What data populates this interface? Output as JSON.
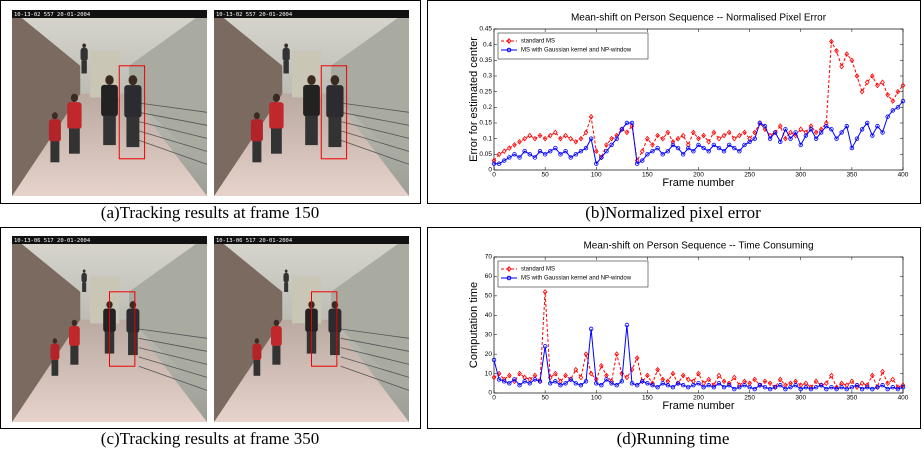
{
  "figure": {
    "captions": [
      "(a)Tracking results at frame 150",
      "(b)Normalized pixel error",
      "(c)Tracking results at frame 350",
      "(d)Running time"
    ],
    "photo_stamps": [
      "10-13-02 557 20-01-2004",
      "10-13-02 557 20-01-2004",
      "10-13-06 517 20-01-2004",
      "10-13-06 517 20-01-2004"
    ]
  },
  "chart_data": [
    {
      "type": "line",
      "title": "Mean-shift on Person Sequence -- Normalised Pixel Error",
      "x_label": "Frame number",
      "y_label": "Error for estimated center",
      "xlim": [
        0,
        400
      ],
      "xticks": [
        0,
        50,
        100,
        150,
        200,
        250,
        300,
        350,
        400
      ],
      "ylim": [
        0,
        0.45
      ],
      "yticks": [
        0,
        0.05,
        0.1,
        0.15,
        0.2,
        0.25,
        0.3,
        0.35,
        0.4,
        0.45
      ],
      "grid": false,
      "legend": "upper left",
      "x": [
        0,
        5,
        10,
        15,
        20,
        25,
        30,
        35,
        40,
        45,
        50,
        55,
        60,
        65,
        70,
        75,
        80,
        85,
        90,
        95,
        100,
        105,
        110,
        115,
        120,
        125,
        130,
        135,
        140,
        145,
        150,
        155,
        160,
        165,
        170,
        175,
        180,
        185,
        190,
        195,
        200,
        205,
        210,
        215,
        220,
        225,
        230,
        235,
        240,
        245,
        250,
        255,
        260,
        265,
        270,
        275,
        280,
        285,
        290,
        295,
        300,
        305,
        310,
        315,
        320,
        325,
        330,
        335,
        340,
        345,
        350,
        355,
        360,
        365,
        370,
        375,
        380,
        385,
        390,
        395,
        400
      ],
      "series": [
        {
          "name": "standard MS",
          "color": "#ff0000",
          "marker": "diamond",
          "dash": true,
          "values": [
            0.03,
            0.05,
            0.06,
            0.07,
            0.08,
            0.09,
            0.1,
            0.11,
            0.1,
            0.11,
            0.1,
            0.11,
            0.12,
            0.1,
            0.11,
            0.1,
            0.09,
            0.1,
            0.12,
            0.17,
            0.06,
            0.04,
            0.08,
            0.1,
            0.11,
            0.13,
            0.12,
            0.14,
            0.03,
            0.06,
            0.1,
            0.08,
            0.11,
            0.1,
            0.12,
            0.09,
            0.1,
            0.11,
            0.08,
            0.12,
            0.1,
            0.11,
            0.09,
            0.12,
            0.1,
            0.11,
            0.12,
            0.1,
            0.11,
            0.12,
            0.1,
            0.12,
            0.15,
            0.13,
            0.11,
            0.12,
            0.14,
            0.1,
            0.12,
            0.11,
            0.13,
            0.12,
            0.14,
            0.12,
            0.13,
            0.15,
            0.41,
            0.38,
            0.33,
            0.37,
            0.35,
            0.3,
            0.25,
            0.28,
            0.3,
            0.27,
            0.28,
            0.24,
            0.22,
            0.25,
            0.27
          ]
        },
        {
          "name": "MS with Gaussian kernel and NP-window",
          "color": "#0000ff",
          "marker": "circle",
          "dash": false,
          "values": [
            0.02,
            0.02,
            0.03,
            0.04,
            0.05,
            0.04,
            0.06,
            0.05,
            0.04,
            0.06,
            0.05,
            0.06,
            0.07,
            0.05,
            0.06,
            0.04,
            0.05,
            0.06,
            0.07,
            0.1,
            0.02,
            0.04,
            0.06,
            0.08,
            0.1,
            0.13,
            0.15,
            0.15,
            0.02,
            0.03,
            0.05,
            0.06,
            0.07,
            0.05,
            0.06,
            0.08,
            0.07,
            0.05,
            0.07,
            0.06,
            0.08,
            0.07,
            0.06,
            0.08,
            0.07,
            0.06,
            0.08,
            0.07,
            0.06,
            0.08,
            0.09,
            0.1,
            0.15,
            0.14,
            0.1,
            0.12,
            0.09,
            0.13,
            0.1,
            0.12,
            0.08,
            0.11,
            0.13,
            0.1,
            0.12,
            0.14,
            0.13,
            0.1,
            0.12,
            0.14,
            0.07,
            0.1,
            0.13,
            0.15,
            0.11,
            0.14,
            0.12,
            0.17,
            0.19,
            0.2,
            0.22
          ]
        }
      ]
    },
    {
      "type": "line",
      "title": "Mean-shift on Person Sequence -- Time Consuming",
      "x_label": "Frame number",
      "y_label": "Computation time",
      "xlim": [
        0,
        400
      ],
      "xticks": [
        0,
        50,
        100,
        150,
        200,
        250,
        300,
        350,
        400
      ],
      "ylim": [
        0,
        70
      ],
      "yticks": [
        0,
        10,
        20,
        30,
        40,
        50,
        60,
        70
      ],
      "grid": false,
      "legend": "upper left",
      "x": [
        0,
        5,
        10,
        15,
        20,
        25,
        30,
        35,
        40,
        45,
        50,
        55,
        60,
        65,
        70,
        75,
        80,
        85,
        90,
        95,
        100,
        105,
        110,
        115,
        120,
        125,
        130,
        135,
        140,
        145,
        150,
        155,
        160,
        165,
        170,
        175,
        180,
        185,
        190,
        195,
        200,
        205,
        210,
        215,
        220,
        225,
        230,
        235,
        240,
        245,
        250,
        255,
        260,
        265,
        270,
        275,
        280,
        285,
        290,
        295,
        300,
        305,
        310,
        315,
        320,
        325,
        330,
        335,
        340,
        345,
        350,
        355,
        360,
        365,
        370,
        375,
        380,
        385,
        390,
        395,
        400
      ],
      "series": [
        {
          "name": "standard MS",
          "color": "#ff0000",
          "marker": "diamond",
          "dash": true,
          "values": [
            8,
            10,
            7,
            9,
            6,
            10,
            8,
            7,
            9,
            6,
            52,
            8,
            10,
            6,
            9,
            7,
            12,
            8,
            20,
            10,
            7,
            14,
            9,
            6,
            20,
            10,
            8,
            12,
            18,
            6,
            9,
            5,
            12,
            7,
            6,
            10,
            5,
            9,
            7,
            6,
            10,
            5,
            7,
            4,
            9,
            6,
            5,
            8,
            4,
            6,
            5,
            7,
            4,
            6,
            5,
            3,
            7,
            4,
            5,
            6,
            4,
            5,
            3,
            6,
            4,
            5,
            9,
            3,
            5,
            4,
            6,
            3,
            5,
            4,
            9,
            3,
            11,
            5,
            7,
            3,
            4
          ]
        },
        {
          "name": "MS with Gaussian kernel and NP-window",
          "color": "#0000ff",
          "marker": "circle",
          "dash": false,
          "values": [
            17,
            7,
            6,
            5,
            7,
            4,
            6,
            5,
            7,
            6,
            24,
            5,
            6,
            4,
            5,
            7,
            5,
            4,
            6,
            33,
            5,
            4,
            7,
            5,
            4,
            6,
            35,
            5,
            4,
            6,
            5,
            4,
            3,
            5,
            4,
            3,
            5,
            4,
            3,
            4,
            5,
            3,
            4,
            3,
            5,
            3,
            4,
            2,
            3,
            4,
            3,
            2,
            4,
            3,
            2,
            3,
            4,
            2,
            3,
            4,
            2,
            3,
            2,
            3,
            4,
            2,
            3,
            2,
            3,
            2,
            3,
            4,
            2,
            3,
            2,
            3,
            4,
            2,
            3,
            2,
            3
          ]
        }
      ]
    }
  ]
}
